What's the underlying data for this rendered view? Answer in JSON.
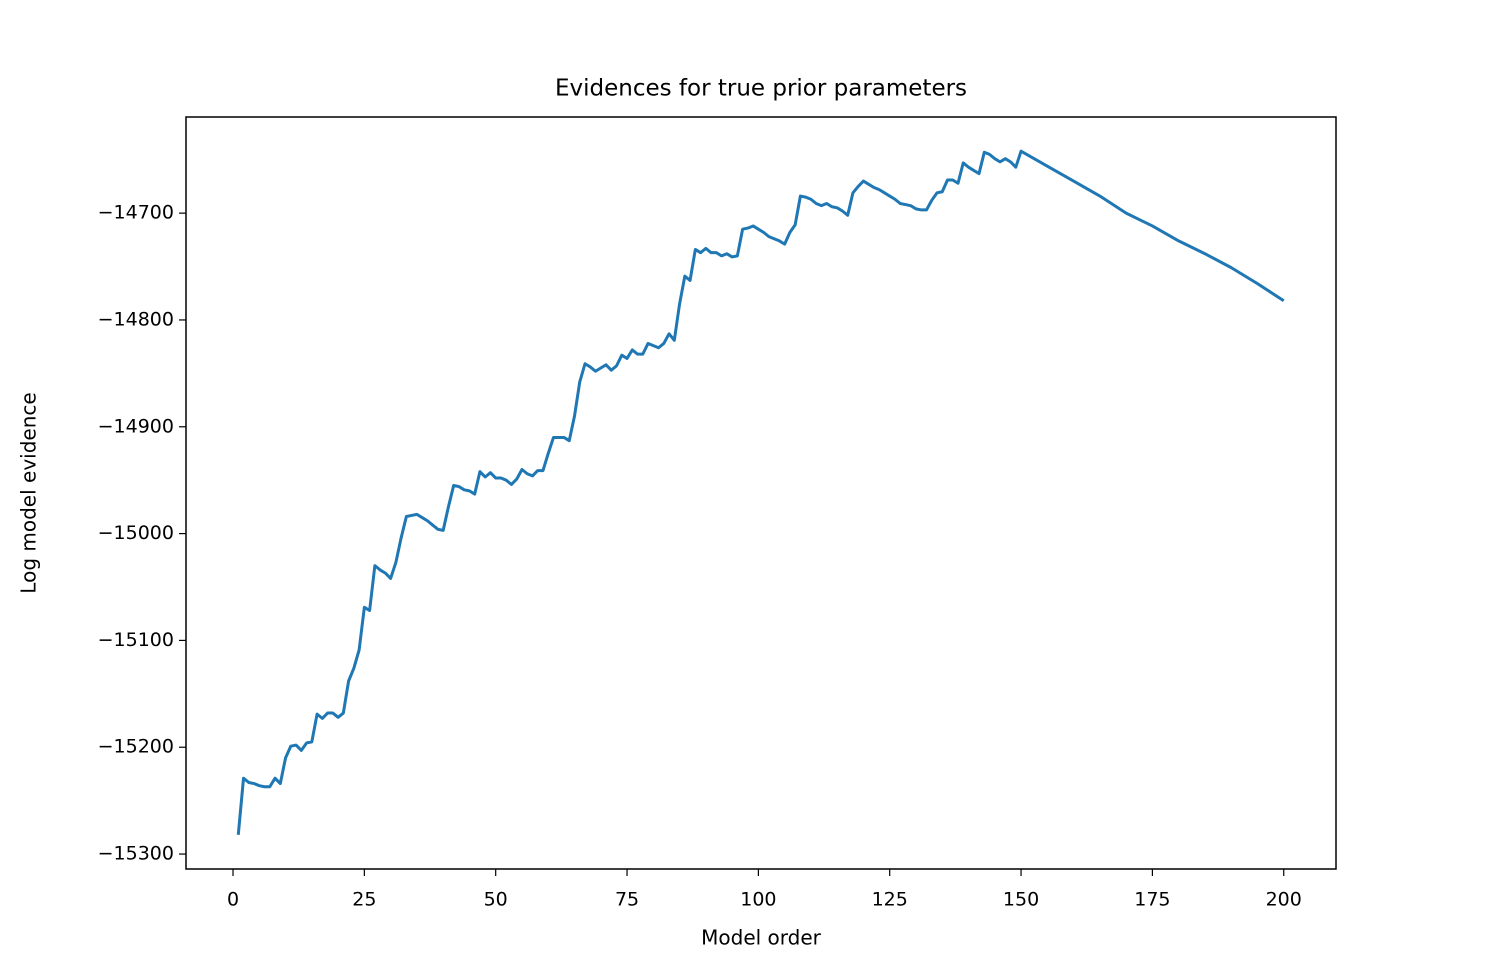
{
  "chart_data": {
    "type": "line",
    "title": "Evidences for true prior parameters",
    "x_label": "Model order",
    "y_label": "Log model evidence",
    "xlim": [
      -8.95,
      209.95
    ],
    "ylim": [
      -15314,
      -14610
    ],
    "xticks": [
      0,
      25,
      50,
      75,
      100,
      125,
      150,
      175,
      200
    ],
    "yticks": [
      {
        "value": -15300,
        "label": "−15300"
      },
      {
        "value": -15200,
        "label": "−15200"
      },
      {
        "value": -15100,
        "label": "−15100"
      },
      {
        "value": -15000,
        "label": "−15000"
      },
      {
        "value": -14900,
        "label": "−14900"
      },
      {
        "value": -14800,
        "label": "−14800"
      },
      {
        "value": -14700,
        "label": "−14700"
      }
    ],
    "grid": false,
    "series": [
      {
        "color": "#1f77b4",
        "x": [
          1,
          2,
          3,
          4,
          5,
          6,
          7,
          8,
          9,
          10,
          11,
          12,
          13,
          14,
          15,
          16,
          17,
          18,
          19,
          20,
          21,
          22,
          23,
          24,
          25,
          26,
          27,
          28,
          29,
          30,
          31,
          32,
          33,
          34,
          35,
          36,
          37,
          38,
          39,
          40,
          41,
          42,
          43,
          44,
          45,
          46,
          47,
          48,
          49,
          50,
          51,
          52,
          53,
          54,
          55,
          56,
          57,
          58,
          59,
          60,
          61,
          62,
          63,
          64,
          65,
          66,
          67,
          68,
          69,
          70,
          71,
          72,
          73,
          74,
          75,
          76,
          77,
          78,
          79,
          80,
          81,
          82,
          83,
          84,
          85,
          86,
          87,
          88,
          89,
          90,
          91,
          92,
          93,
          94,
          95,
          96,
          97,
          98,
          99,
          100,
          101,
          102,
          103,
          104,
          105,
          106,
          107,
          108,
          109,
          110,
          111,
          112,
          113,
          114,
          115,
          116,
          117,
          118,
          119,
          120,
          121,
          122,
          123,
          124,
          125,
          126,
          127,
          128,
          129,
          130,
          131,
          132,
          133,
          134,
          135,
          136,
          137,
          138,
          139,
          140,
          141,
          142,
          143,
          144,
          145,
          146,
          147,
          148,
          149,
          150,
          155,
          160,
          165,
          170,
          175,
          180,
          185,
          190,
          195,
          200
        ],
        "values": [
          -15282,
          -15229,
          -15233,
          -15234,
          -15236,
          -15237,
          -15237,
          -15229,
          -15234,
          -15210,
          -15199,
          -15198,
          -15203,
          -15196,
          -15195,
          -15169,
          -15173,
          -15168,
          -15168,
          -15172,
          -15168,
          -15138,
          -15126,
          -15109,
          -15069,
          -15072,
          -15030,
          -15034,
          -15037,
          -15042,
          -15027,
          -15004,
          -14984,
          -14983,
          -14982,
          -14985,
          -14988,
          -14992,
          -14996,
          -14997,
          -14975,
          -14955,
          -14956,
          -14959,
          -14960,
          -14963,
          -14942,
          -14947,
          -14943,
          -14948,
          -14948,
          -14950,
          -14954,
          -14949,
          -14940,
          -14944,
          -14946,
          -14941,
          -14941,
          -14925,
          -14910,
          -14910,
          -14910,
          -14913,
          -14890,
          -14858,
          -14841,
          -14844,
          -14848,
          -14845,
          -14842,
          -14847,
          -14843,
          -14833,
          -14836,
          -14828,
          -14832,
          -14832,
          -14822,
          -14824,
          -14826,
          -14822,
          -14813,
          -14819,
          -14785,
          -14759,
          -14763,
          -14734,
          -14737,
          -14733,
          -14737,
          -14737,
          -14740,
          -14738,
          -14741,
          -14740,
          -14715,
          -14714,
          -14712,
          -14715,
          -14718,
          -14722,
          -14724,
          -14726,
          -14729,
          -14718,
          -14711,
          -14684,
          -14685,
          -14687,
          -14691,
          -14693,
          -14691,
          -14694,
          -14695,
          -14698,
          -14702,
          -14681,
          -14675,
          -14670,
          -14673,
          -14676,
          -14678,
          -14681,
          -14684,
          -14687,
          -14691,
          -14692,
          -14693,
          -14696,
          -14697,
          -14697,
          -14688,
          -14681,
          -14680,
          -14669,
          -14669,
          -14672,
          -14653,
          -14657,
          -14660,
          -14663,
          -14643,
          -14645,
          -14649,
          -14652,
          -14649,
          -14652,
          -14657,
          -14642,
          -14656,
          -14670,
          -14684,
          -14700,
          -14712,
          -14726,
          -14738,
          -14751,
          -14766,
          -14782
        ]
      }
    ]
  }
}
